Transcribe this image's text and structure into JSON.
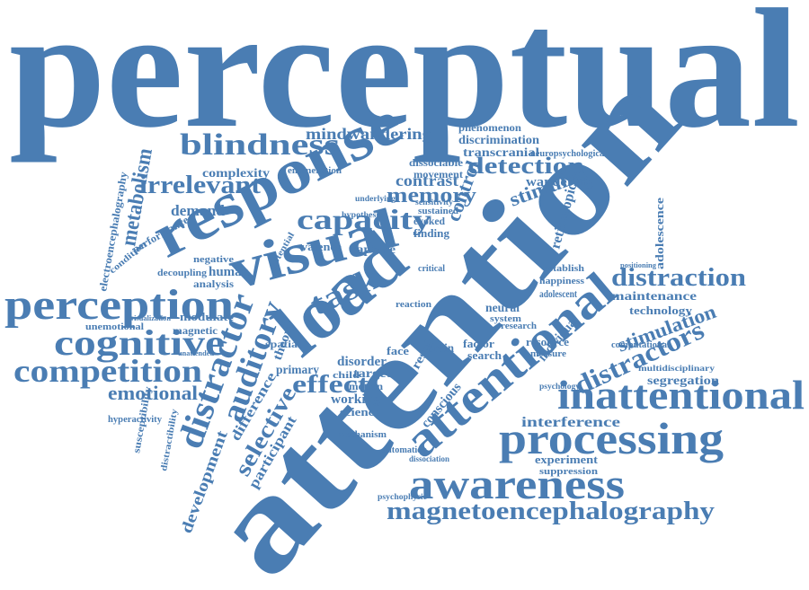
{
  "words": [
    "perceptual",
    "attention",
    "response",
    "visual",
    "load",
    "attentional",
    "inattentional",
    "processing",
    "awareness",
    "magnetoencephalography",
    "perception",
    "cognitive",
    "competition",
    "blindness",
    "distraction",
    "distractors",
    "distractor",
    "auditory",
    "capacity",
    "task",
    "effect",
    "detection",
    "memory",
    "stimulus",
    "irrelevant",
    "metabolism",
    "emotional",
    "selective",
    "development",
    "participant",
    "mindwandering",
    "contrast",
    "control",
    "retinotopic",
    "stimulation",
    "maintenance",
    "technology",
    "segregation",
    "multidisciplinary",
    "interference",
    "experiment",
    "suppression",
    "adolescence",
    "wandering",
    "demand",
    "complexity",
    "enumeration",
    "electroencephalography",
    "performance",
    "condition",
    "decoupling",
    "human",
    "negative",
    "analysis",
    "modulate",
    "magnetic",
    "unemotional",
    "visualization",
    "unattended",
    "hyperactivity",
    "susceptibility",
    "distractibility",
    "valence",
    "capture",
    "disorder",
    "child",
    "working",
    "science",
    "motion",
    "target",
    "primary",
    "spatial",
    "theory",
    "difference",
    "mechanism",
    "automation",
    "dissociation",
    "psychophysic",
    "phenomenon",
    "discrimination",
    "transcranial",
    "neuropsychological",
    "dissociable",
    "movement",
    "finding",
    "face",
    "brain",
    "result",
    "conscious",
    "neural",
    "system",
    "research",
    "factor",
    "search",
    "resource",
    "measure",
    "happiness",
    "adolescent",
    "individual",
    "establish",
    "computational",
    "psychology",
    "reaction",
    "critical",
    "evoked",
    "sustained",
    "sensitivity",
    "positioning",
    "underlying",
    "hypothesis",
    "potential"
  ]
}
